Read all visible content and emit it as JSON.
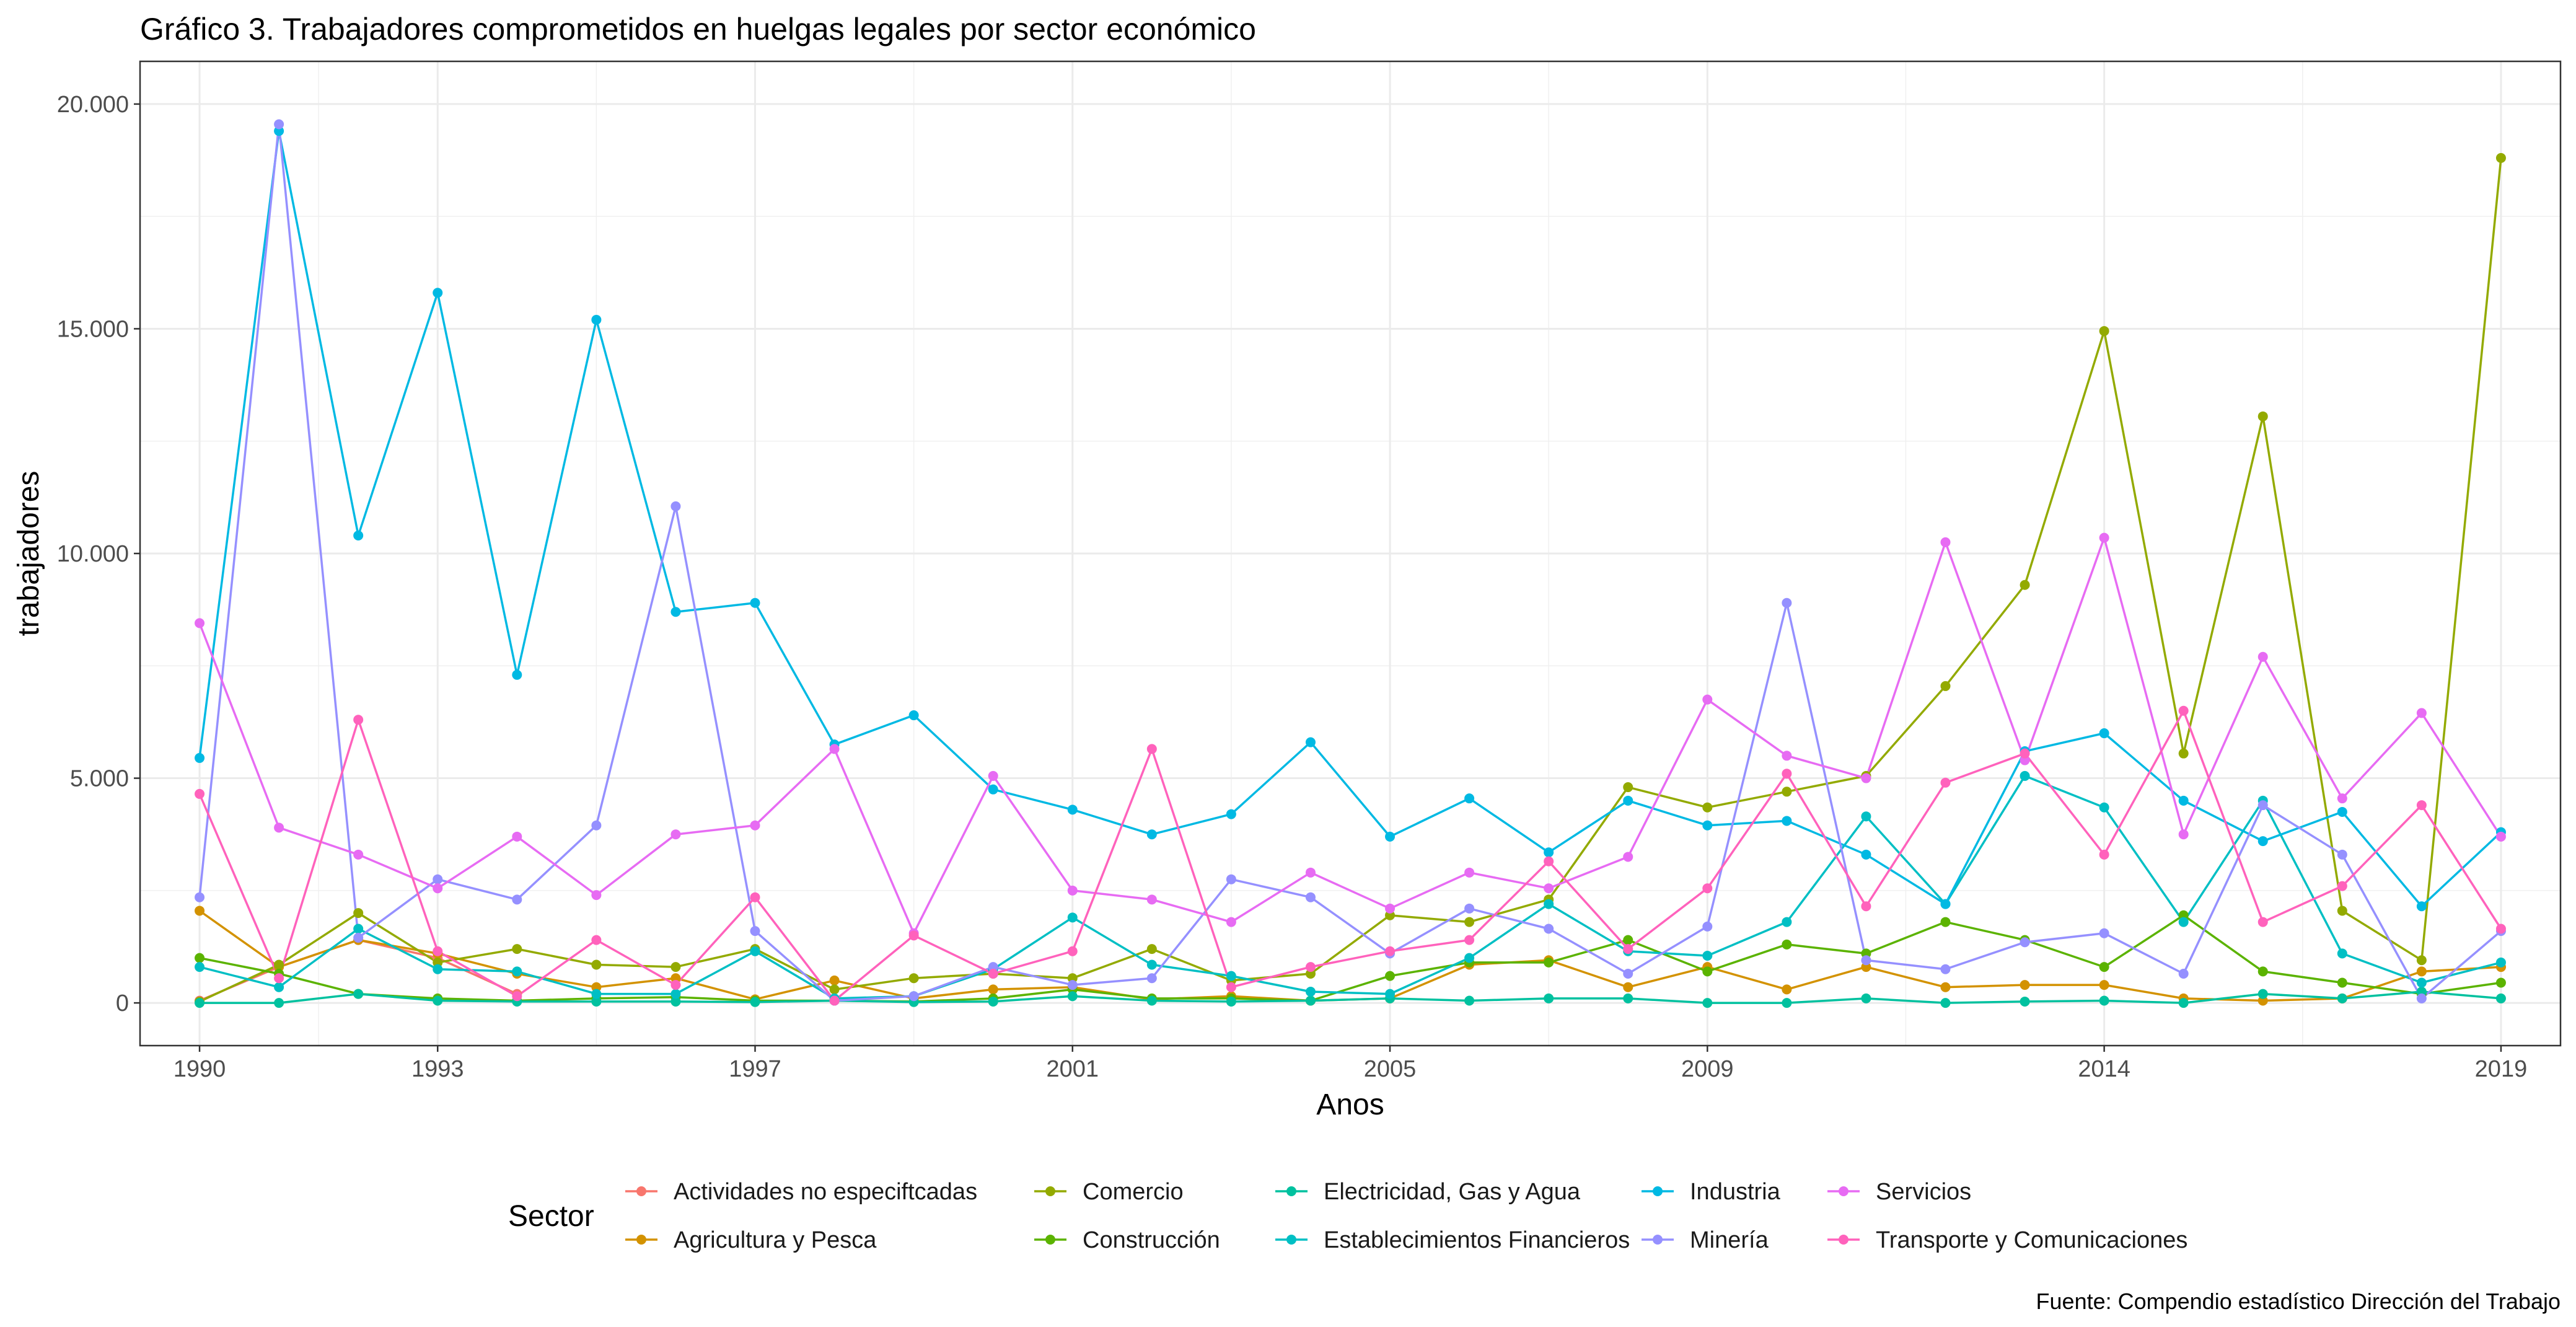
{
  "chart_data": {
    "type": "line",
    "title": "Gráfico 3. Trabajadores comprometidos en huelgas legales por sector económico",
    "caption": "Fuente: Compendio estadístico Dirección del Trabajo",
    "xlabel": "Anos",
    "ylabel": "trabajadores",
    "xlim": [
      1989.25,
      2019.75
    ],
    "ylim": [
      -950,
      20950
    ],
    "x_ticks": [
      1990,
      1993,
      1997,
      2001,
      2005,
      2009,
      2014,
      2019
    ],
    "y_ticks": [
      0,
      5000,
      10000,
      15000,
      20000
    ],
    "y_tick_labels": [
      "0",
      "5.000",
      "10.000",
      "15.000",
      "20.000"
    ],
    "grid": true,
    "legend": {
      "position": "bottom",
      "title": "Sector"
    },
    "x": [
      1990,
      1991,
      1992,
      1993,
      1994,
      1995,
      1996,
      1997,
      1998,
      1999,
      2000,
      2001,
      2002,
      2003,
      2004,
      2005,
      2006,
      2007,
      2008,
      2009,
      2010,
      2011,
      2012,
      2013,
      2014,
      2015,
      2016,
      2017,
      2018,
      2019
    ],
    "series": [
      {
        "name": "Actividades  no  especiftcadas",
        "color": "#F8766D",
        "values": [
          50,
          800,
          1400,
          1000,
          200,
          null,
          null,
          null,
          null,
          null,
          null,
          null,
          null,
          null,
          null,
          null,
          null,
          null,
          null,
          null,
          null,
          null,
          null,
          null,
          null,
          null,
          null,
          null,
          null,
          800
        ]
      },
      {
        "name": "Agricultura y Pesca",
        "color": "#D39200",
        "values": [
          2050,
          800,
          1400,
          1100,
          650,
          350,
          550,
          80,
          500,
          100,
          300,
          350,
          80,
          150,
          50,
          100,
          850,
          950,
          350,
          800,
          300,
          800,
          350,
          400,
          400,
          100,
          50,
          100,
          700,
          800
        ]
      },
      {
        "name": "Comercio",
        "color": "#93AA00",
        "values": [
          30,
          850,
          2000,
          900,
          1200,
          850,
          800,
          1200,
          300,
          550,
          650,
          550,
          1200,
          500,
          650,
          1950,
          1800,
          2300,
          4800,
          4350,
          4700,
          5050,
          7050,
          9300,
          14950,
          5550,
          13050,
          2050,
          950,
          18800
        ]
      },
      {
        "name": "Construcción",
        "color": "#5BB300",
        "values": [
          1000,
          650,
          200,
          100,
          50,
          100,
          130,
          50,
          50,
          30,
          100,
          300,
          100,
          100,
          50,
          600,
          900,
          900,
          1400,
          700,
          1300,
          1100,
          1800,
          1400,
          800,
          1950,
          700,
          450,
          200,
          450
        ]
      },
      {
        "name": "Electricidad, Gas y Agua",
        "color": "#00C19F",
        "values": [
          0,
          0,
          200,
          50,
          30,
          30,
          30,
          20,
          50,
          20,
          30,
          150,
          50,
          30,
          50,
          100,
          50,
          100,
          100,
          0,
          0,
          100,
          0,
          30,
          50,
          0,
          200,
          100,
          250,
          100
        ]
      },
      {
        "name": "Establecimientos Financieros",
        "color": "#00BFC4",
        "values": [
          800,
          350,
          1650,
          750,
          700,
          200,
          200,
          1150,
          100,
          150,
          750,
          1900,
          850,
          600,
          250,
          200,
          1000,
          2200,
          1150,
          1050,
          1800,
          4150,
          2200,
          5050,
          4350,
          1800,
          4500,
          1100,
          450,
          900
        ]
      },
      {
        "name": "Industria",
        "color": "#00B9E3",
        "values": [
          5450,
          19400,
          10400,
          15800,
          7300,
          15200,
          8700,
          8900,
          5750,
          6400,
          4750,
          4300,
          3750,
          4200,
          5800,
          3700,
          4550,
          3350,
          4500,
          3950,
          4050,
          3300,
          2200,
          5600,
          6000,
          4500,
          3600,
          4250,
          2150,
          3800
        ]
      },
      {
        "name": "Minería",
        "color": "#9590FF",
        "values": [
          2350,
          19550,
          1450,
          2750,
          2300,
          3950,
          11050,
          1600,
          50,
          150,
          800,
          400,
          550,
          2750,
          2350,
          1100,
          2100,
          1650,
          650,
          1700,
          8900,
          950,
          750,
          1350,
          1550,
          650,
          4400,
          3300,
          100,
          1600
        ]
      },
      {
        "name": "Servicios",
        "color": "#E76BF3",
        "values": [
          8450,
          3900,
          3300,
          2550,
          3700,
          2400,
          3750,
          3950,
          5650,
          1550,
          5050,
          2500,
          2300,
          1800,
          2900,
          2100,
          2900,
          2550,
          3250,
          6750,
          5500,
          5000,
          10250,
          5400,
          10350,
          3750,
          7700,
          4550,
          6450,
          3700
        ]
      },
      {
        "name": "Transporte y Comunicaciones",
        "color": "#FF62BC",
        "values": [
          4650,
          550,
          6300,
          1150,
          150,
          1400,
          400,
          2350,
          50,
          1500,
          650,
          1150,
          5650,
          350,
          800,
          1150,
          1400,
          3150,
          1200,
          2550,
          5100,
          2150,
          4900,
          5550,
          3300,
          6500,
          1800,
          2600,
          4400,
          1650
        ]
      }
    ]
  }
}
